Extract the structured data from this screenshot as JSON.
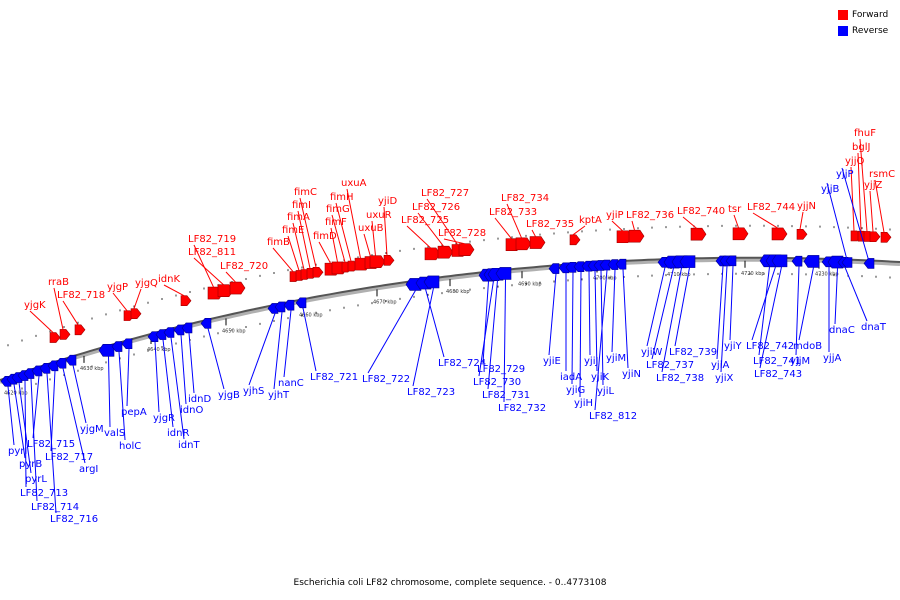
{
  "legend": {
    "forward_label": "Forward",
    "reverse_label": "Reverse",
    "forward_color": "#ff0000",
    "reverse_color": "#0000ff"
  },
  "caption": "Escherichia coli LF82 chromosome, complete sequence. - 0..4773108",
  "scale": {
    "unit": "kbp",
    "ticks": [
      "4620 kbp",
      "4630 kbp",
      "4640 kbp",
      "4650 kbp",
      "4660 kbp",
      "4670 kbp",
      "4680 kbp",
      "4690 kbp",
      "4700 kbp",
      "4710 kbp",
      "4720 kbp",
      "4730 kbp"
    ]
  },
  "forward_genes": [
    "yjgK",
    "rraB",
    "LF82_718",
    "yjgP",
    "yjgQ",
    "idnK",
    "LF82_719",
    "LF82_811",
    "LF82_720",
    "fimB",
    "fimE",
    "fimA",
    "fimI",
    "fimC",
    "fimD",
    "fimF",
    "fimG",
    "fimH",
    "uxuA",
    "uxuB",
    "uxuR",
    "yjiD",
    "LF82_725",
    "LF82_726",
    "LF82_727",
    "LF82_728",
    "LF82_733",
    "LF82_734",
    "LF82_735",
    "kptA",
    "yjiP",
    "LF82_736",
    "LF82_740",
    "tsr",
    "LF82_744",
    "yjjN",
    "yjjQ",
    "bglJ",
    "fhuF",
    "yjjZ",
    "rsmC"
  ],
  "reverse_genes": [
    "pyrI",
    "pyrB",
    "pyrL",
    "LF82_713",
    "LF82_714",
    "LF82_715",
    "LF82_716",
    "LF82_717",
    "argI",
    "yjgM",
    "valS",
    "holC",
    "pepA",
    "yjgR",
    "idnR",
    "idnT",
    "idnO",
    "idnD",
    "yjgB",
    "yjhS",
    "yjhT",
    "nanC",
    "LF82_721",
    "LF82_722",
    "LF82_724",
    "LF82_723",
    "LF82_729",
    "LF82_730",
    "LF82_731",
    "LF82_732",
    "yjiE",
    "iadA",
    "yjiG",
    "yjiH",
    "yjiJ",
    "yjiK",
    "yjiL",
    "LF82_812",
    "yjiM",
    "yjiN",
    "yjiW",
    "LF82_737",
    "LF82_738",
    "LF82_739",
    "yjiA",
    "yjiX",
    "yjiY",
    "LF82_741",
    "LF82_742",
    "LF82_743",
    "yjjM",
    "mdoB",
    "yjjA",
    "dnaC",
    "dnaT",
    "yjjB",
    "yjjP"
  ]
}
